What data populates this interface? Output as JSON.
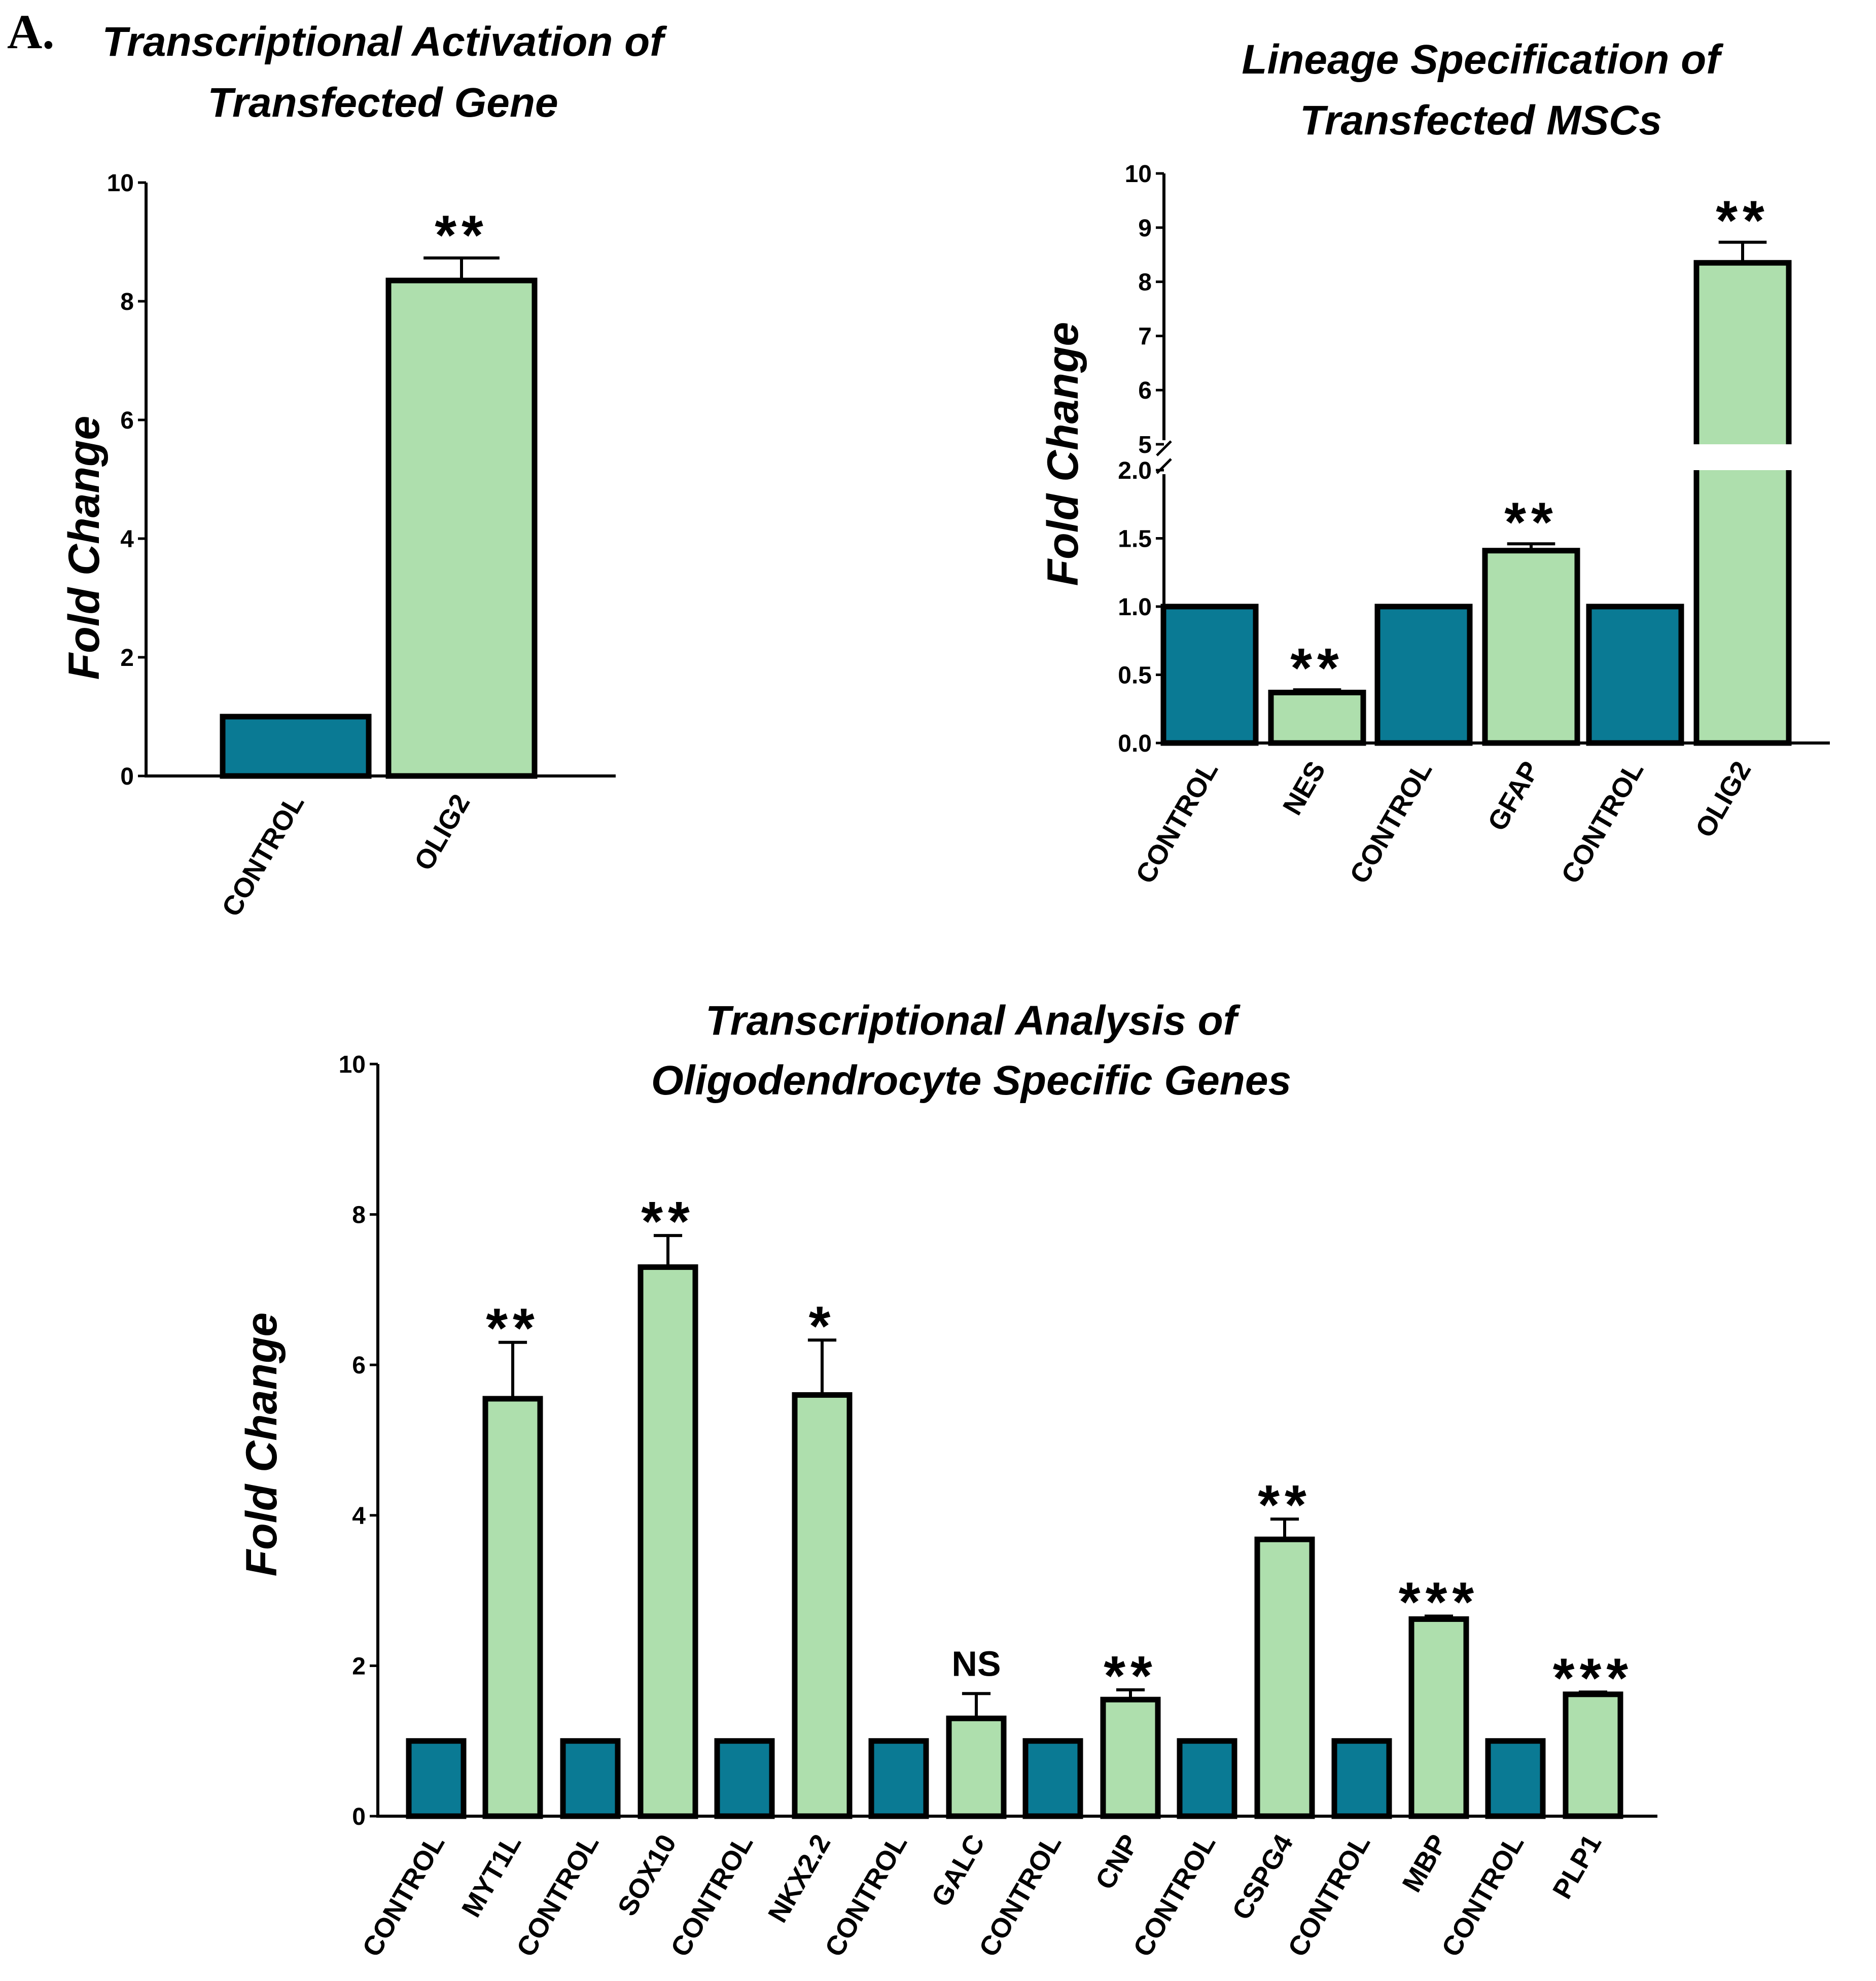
{
  "panel_label": "A.",
  "colors": {
    "control": "#0a7a94",
    "treated": "#aedfad",
    "outline": "#000000"
  },
  "chart_data": [
    {
      "type": "bar",
      "title": [
        "Transcriptional Activation of",
        "Transfected Gene"
      ],
      "ylabel": "Fold Change",
      "xlabel": "",
      "ylim": [
        0,
        10
      ],
      "yticks": [
        "0",
        "2",
        "4",
        "6",
        "8",
        "10"
      ],
      "categories": [
        "CONTROL",
        "OLIG2"
      ],
      "values": [
        1.0,
        8.35
      ],
      "errors": [
        0,
        0.38
      ],
      "groups": [
        "control",
        "treated"
      ],
      "significance": [
        "",
        "**"
      ]
    },
    {
      "type": "bar",
      "title": [
        "Lineage Specification of",
        "Transfected MSCs"
      ],
      "ylabel": "Fold Change",
      "xlabel": "",
      "ylim": [
        0,
        10
      ],
      "axis_break": [
        2.0,
        5.0
      ],
      "yticks_lower": [
        "0.0",
        "0.5",
        "1.0",
        "1.5",
        "2.0"
      ],
      "yticks_upper": [
        "5",
        "6",
        "7",
        "8",
        "9",
        "10"
      ],
      "categories": [
        "CONTROL",
        "NES",
        "CONTROL",
        "GFAP",
        "CONTROL",
        "OLIG2"
      ],
      "values": [
        1.0,
        0.37,
        1.0,
        1.41,
        1.0,
        8.35
      ],
      "errors": [
        0,
        0.02,
        0,
        0.05,
        0,
        0.38
      ],
      "groups": [
        "control",
        "treated",
        "control",
        "treated",
        "control",
        "treated"
      ],
      "significance": [
        "",
        "**",
        "",
        "**",
        "",
        "**"
      ]
    },
    {
      "type": "bar",
      "title": [
        "Transcriptional Analysis of",
        "Oligodendrocyte Specific Genes"
      ],
      "ylabel": "Fold Change",
      "xlabel": "",
      "ylim": [
        0,
        10
      ],
      "yticks": [
        "0",
        "2",
        "4",
        "6",
        "8",
        "10"
      ],
      "categories": [
        "CONTROL",
        "MYT1L",
        "CONTROL",
        "SOX10",
        "CONTROL",
        "NKX2.2",
        "CONTROL",
        "GALC",
        "CONTROL",
        "CNP",
        "CONTROL",
        "CSPG4",
        "CONTROL",
        "MBP",
        "CONTROL",
        "PLP1"
      ],
      "values": [
        1.0,
        5.55,
        1.0,
        7.3,
        1.0,
        5.6,
        1.0,
        1.3,
        1.0,
        1.55,
        1.0,
        3.68,
        1.0,
        2.62,
        1.0,
        1.62
      ],
      "errors": [
        0,
        0.75,
        0,
        0.42,
        0,
        0.73,
        0,
        0.33,
        0,
        0.13,
        0,
        0.27,
        0,
        0.04,
        0,
        0.03
      ],
      "groups": [
        "control",
        "treated",
        "control",
        "treated",
        "control",
        "treated",
        "control",
        "treated",
        "control",
        "treated",
        "control",
        "treated",
        "control",
        "treated",
        "control",
        "treated"
      ],
      "significance": [
        "",
        "**",
        "",
        "**",
        "",
        "*",
        "",
        "NS",
        "",
        "**",
        "",
        "**",
        "",
        "***",
        "",
        "***"
      ]
    }
  ]
}
